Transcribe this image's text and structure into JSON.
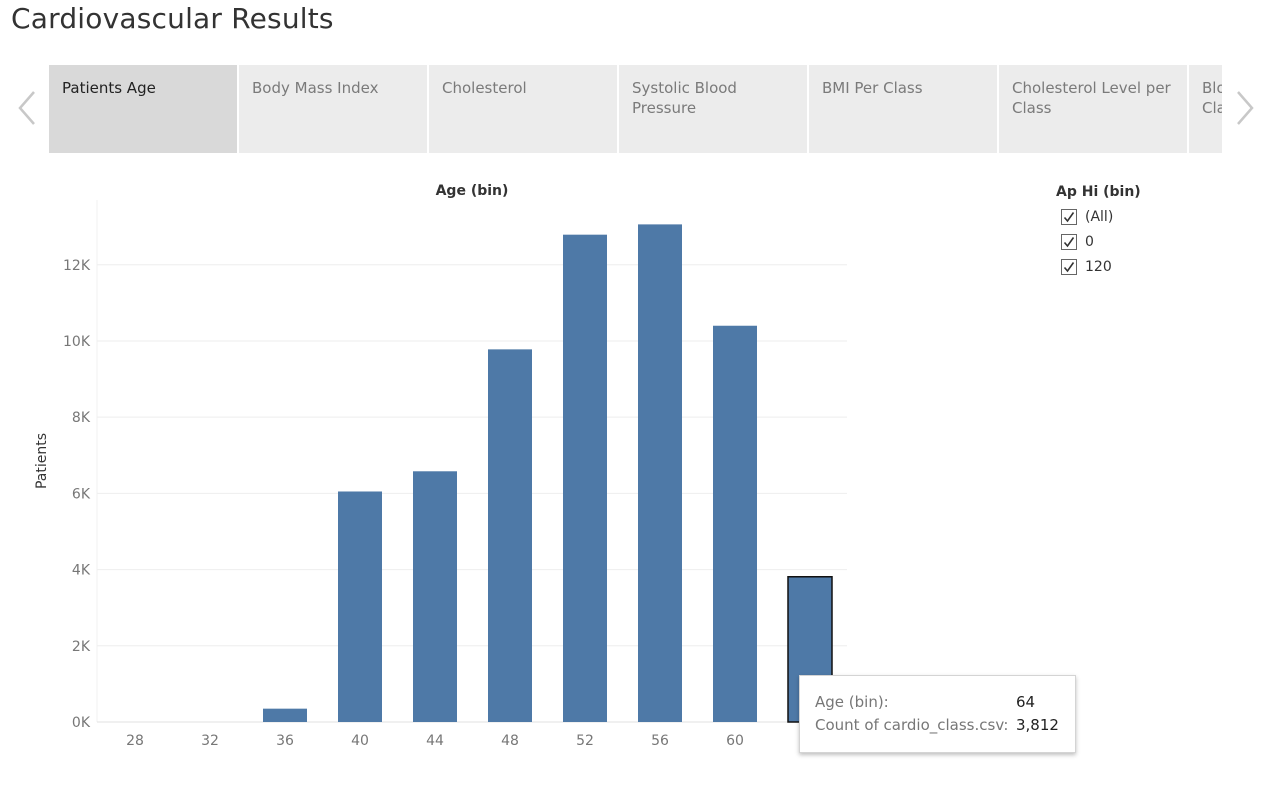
{
  "page": {
    "title": "Cardiovascular Results"
  },
  "tabs": [
    {
      "label": "Patients Age",
      "active": true
    },
    {
      "label": "Body Mass Index",
      "active": false
    },
    {
      "label": "Cholesterol",
      "active": false
    },
    {
      "label": "Systolic Blood Pressure",
      "active": false
    },
    {
      "label": "BMI Per Class",
      "active": false
    },
    {
      "label": "Cholesterol Level per Class",
      "active": false
    },
    {
      "label": "Blood Pressure per Class",
      "active": false
    }
  ],
  "nav": {
    "prev_icon": "chevron-left-icon",
    "next_icon": "chevron-right-icon"
  },
  "chart_data": {
    "type": "bar",
    "title": "Age (bin)",
    "xlabel": "",
    "ylabel": "Patients",
    "categories": [
      "28",
      "32",
      "36",
      "40",
      "44",
      "48",
      "52",
      "56",
      "60",
      "64"
    ],
    "x_tick_labels": [
      "28",
      "32",
      "36",
      "40",
      "44",
      "48",
      "52",
      "56",
      "60"
    ],
    "values": [
      0,
      0,
      350,
      6050,
      6580,
      9780,
      12790,
      13060,
      10400,
      3812
    ],
    "ylim": [
      0,
      13700
    ],
    "y_ticks": [
      {
        "value": 0,
        "label": "0K"
      },
      {
        "value": 2000,
        "label": "2K"
      },
      {
        "value": 4000,
        "label": "4K"
      },
      {
        "value": 6000,
        "label": "6K"
      },
      {
        "value": 8000,
        "label": "8K"
      },
      {
        "value": 10000,
        "label": "10K"
      },
      {
        "value": 12000,
        "label": "12K"
      }
    ],
    "grid": true,
    "bar_color": "#4e79a7",
    "highlighted_category": "64"
  },
  "legend": {
    "title": "Ap Hi (bin)",
    "items": [
      {
        "label": "(All)",
        "checked": true
      },
      {
        "label": "0",
        "checked": true
      },
      {
        "label": "120",
        "checked": true
      }
    ]
  },
  "tooltip": {
    "rows": [
      {
        "key": "Age (bin):",
        "value": "64"
      },
      {
        "key": "Count of cardio_class.csv:",
        "value": "3,812"
      }
    ]
  }
}
